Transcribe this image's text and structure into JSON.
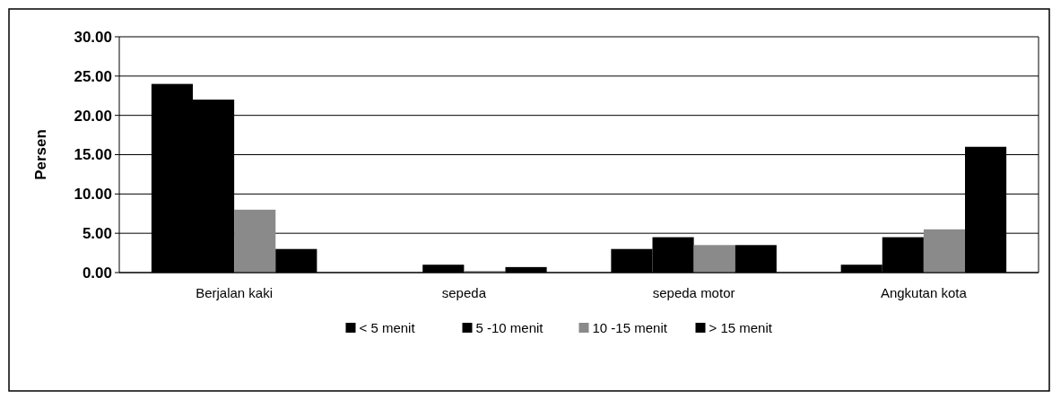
{
  "chart_data": {
    "type": "bar",
    "ylabel": "Persen",
    "categories": [
      "Berjalan kaki",
      "sepeda",
      "sepeda motor",
      "Angkutan kota"
    ],
    "series": [
      {
        "name": "< 5 menit",
        "color": "#000000",
        "values": [
          24,
          0,
          3,
          1
        ]
      },
      {
        "name": "5 -10 menit",
        "color": "#000000",
        "values": [
          22,
          1,
          4.5,
          4.5
        ]
      },
      {
        "name": "10 -15 menit",
        "color": "#8a8a8a",
        "values": [
          8,
          0.2,
          3.5,
          5.5
        ]
      },
      {
        "name": "> 15 menit",
        "color": "#000000",
        "values": [
          3,
          0.7,
          3.5,
          16
        ]
      }
    ],
    "ylim": [
      0,
      30
    ],
    "yticks": [
      {
        "value": 0,
        "label": "0.00"
      },
      {
        "value": 5,
        "label": "5.00"
      },
      {
        "value": 10,
        "label": "10.00"
      },
      {
        "value": 15,
        "label": "15.00"
      },
      {
        "value": 20,
        "label": "20.00"
      },
      {
        "value": 25,
        "label": "25.00"
      },
      {
        "value": 30,
        "label": "30.00"
      }
    ],
    "grid": "y",
    "legend": "bottom"
  }
}
